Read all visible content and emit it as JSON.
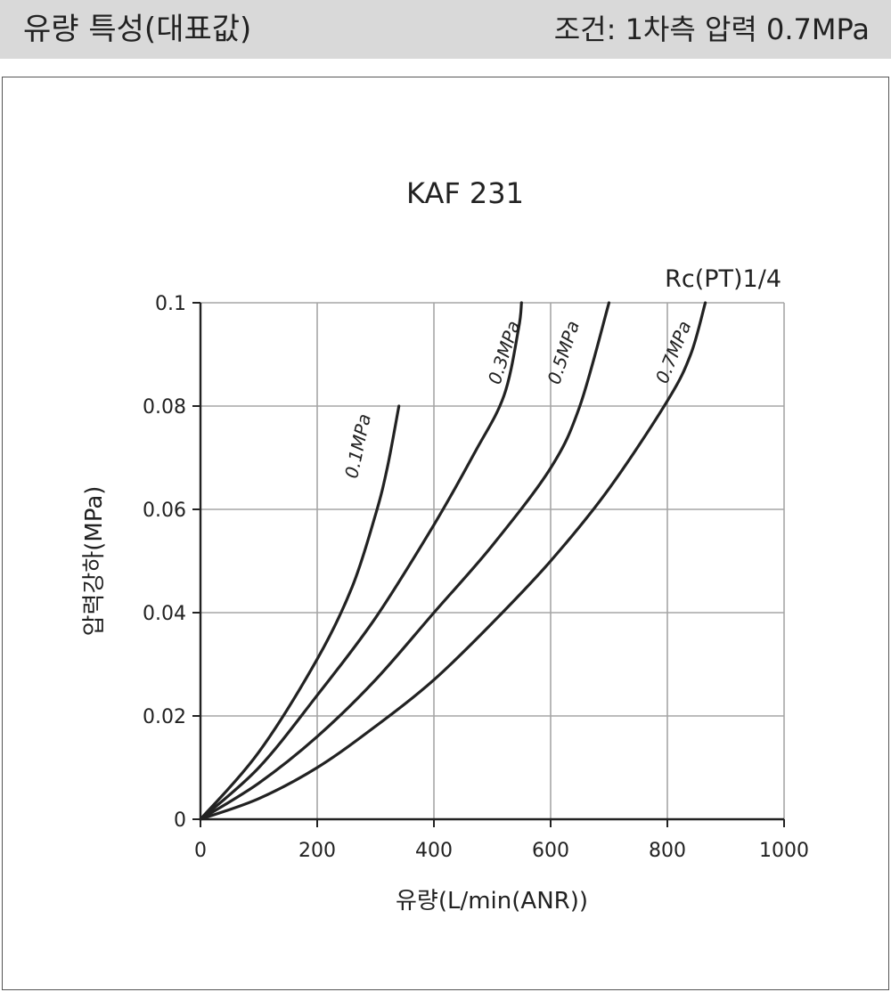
{
  "header": {
    "title": "유량 특성(대표값)",
    "condition": "조건: 1차측 압력 0.7MPa"
  },
  "chart_data": {
    "type": "line",
    "title": "KAF 231",
    "subtitle": "Rc(PT)1/4",
    "xlabel": "유량(L/min(ANR))",
    "ylabel": "압력강하(MPa)",
    "xlim": [
      0,
      1000
    ],
    "ylim": [
      0,
      0.1
    ],
    "xticks": [
      "0",
      "200",
      "400",
      "600",
      "800",
      "1000"
    ],
    "yticks": [
      "0",
      "0.02",
      "0.04",
      "0.06",
      "0.08",
      "0.1"
    ],
    "grid": true,
    "series": [
      {
        "name": "0.1MPa",
        "x": [
          0,
          100,
          200,
          260,
          300,
          320,
          340
        ],
        "y": [
          0,
          0.013,
          0.031,
          0.045,
          0.059,
          0.068,
          0.08
        ]
      },
      {
        "name": "0.3MPa",
        "x": [
          0,
          100,
          200,
          300,
          400,
          470,
          520,
          545,
          550
        ],
        "y": [
          0,
          0.01,
          0.024,
          0.039,
          0.057,
          0.071,
          0.082,
          0.095,
          0.1
        ]
      },
      {
        "name": "0.5MPa",
        "x": [
          0,
          100,
          200,
          300,
          400,
          500,
          600,
          650,
          700
        ],
        "y": [
          0,
          0.007,
          0.016,
          0.027,
          0.04,
          0.053,
          0.068,
          0.08,
          0.1
        ]
      },
      {
        "name": "0.7MPa",
        "x": [
          0,
          100,
          200,
          300,
          400,
          500,
          600,
          700,
          800,
          840,
          865
        ],
        "y": [
          0,
          0.004,
          0.01,
          0.018,
          0.027,
          0.038,
          0.05,
          0.064,
          0.081,
          0.09,
          0.1
        ]
      }
    ]
  }
}
